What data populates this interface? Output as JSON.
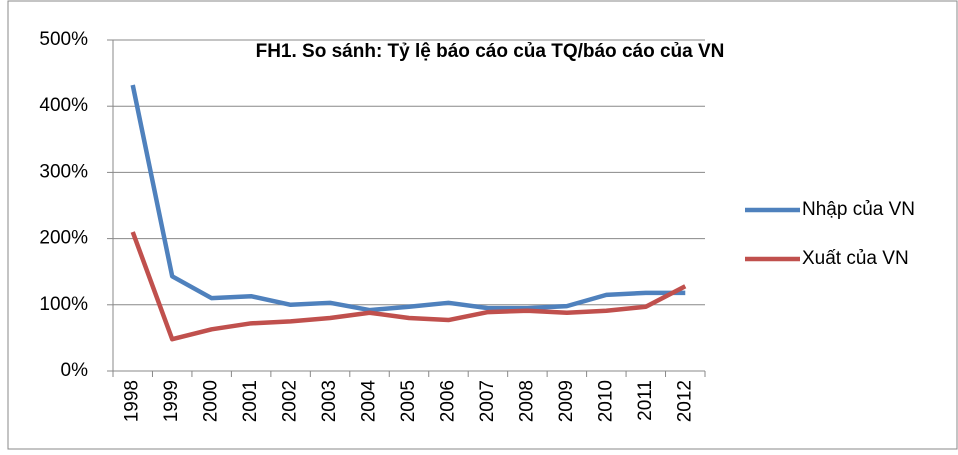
{
  "chart_data": {
    "type": "line",
    "title": "FH1. So sánh: Tỷ lệ báo cáo của TQ/báo cáo của VN",
    "categories": [
      "1998",
      "1999",
      "2000",
      "2001",
      "2002",
      "2003",
      "2004",
      "2005",
      "2006",
      "2007",
      "2008",
      "2009",
      "2010",
      "2011",
      "2012"
    ],
    "series": [
      {
        "name": "Nhập của VN",
        "color": "#4f81bd",
        "values": [
          432,
          143,
          110,
          113,
          100,
          103,
          92,
          97,
          103,
          95,
          95,
          98,
          115,
          118,
          118
        ]
      },
      {
        "name": "Xuất của VN",
        "color": "#c0504d",
        "values": [
          210,
          48,
          63,
          72,
          75,
          80,
          88,
          80,
          77,
          89,
          91,
          88,
          91,
          97,
          128
        ]
      }
    ],
    "ylim": [
      0,
      500
    ],
    "yticks": [
      {
        "value": 0,
        "label": "0%"
      },
      {
        "value": 100,
        "label": "100%"
      },
      {
        "value": 200,
        "label": "200%"
      },
      {
        "value": 300,
        "label": "300%"
      },
      {
        "value": 400,
        "label": "400%"
      },
      {
        "value": 500,
        "label": "500%"
      }
    ],
    "grid": true,
    "legend": "right"
  }
}
